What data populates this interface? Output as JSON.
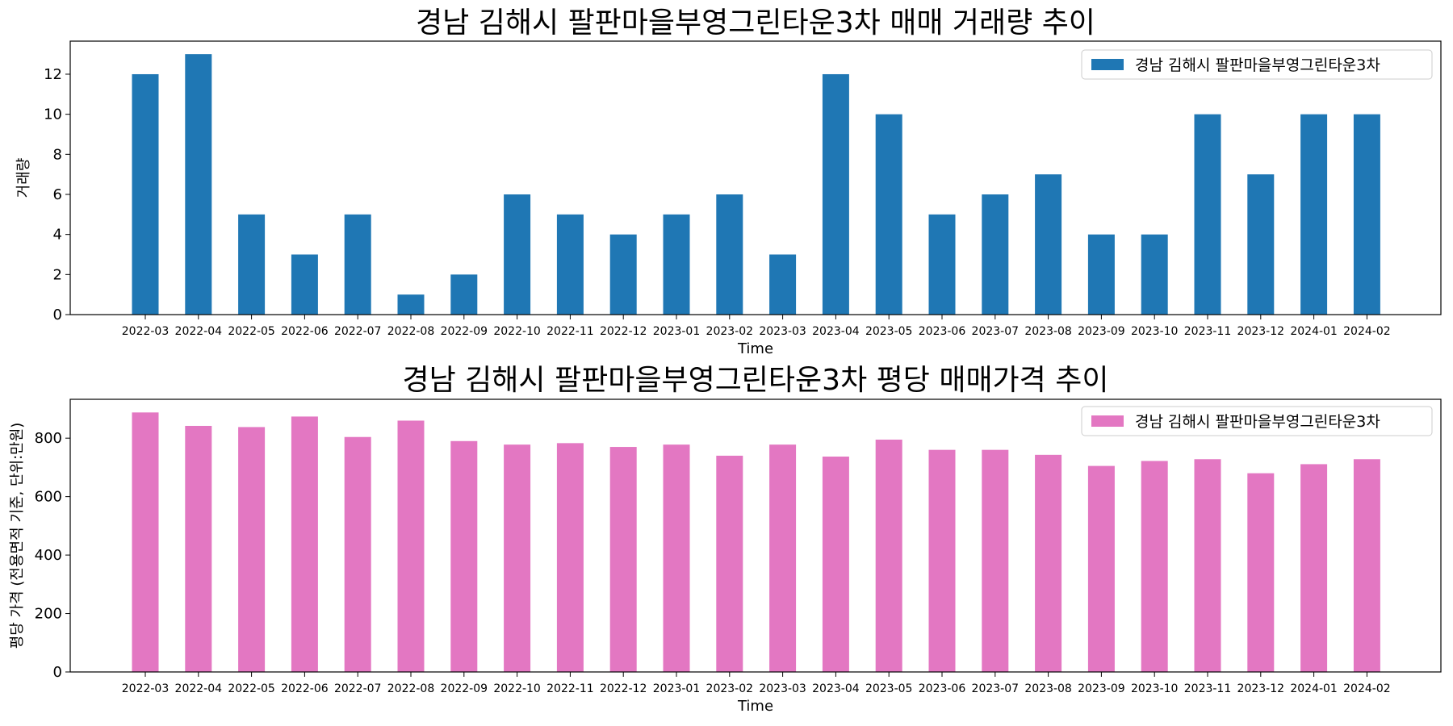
{
  "chart_data": [
    {
      "type": "bar",
      "title": "경남 김해시 팔판마을부영그린타운3차 매매 거래량 추이",
      "xlabel": "Time",
      "ylabel": "거래량",
      "ylim": [
        0,
        13.65
      ],
      "yticks": [
        "0",
        "2",
        "4",
        "6",
        "8",
        "10",
        "12"
      ],
      "legend_position": "top-right",
      "categories": [
        "2022-03",
        "2022-04",
        "2022-05",
        "2022-06",
        "2022-07",
        "2022-08",
        "2022-09",
        "2022-10",
        "2022-11",
        "2022-12",
        "2023-01",
        "2023-02",
        "2023-03",
        "2023-04",
        "2023-05",
        "2023-06",
        "2023-07",
        "2023-08",
        "2023-09",
        "2023-10",
        "2023-11",
        "2023-12",
        "2024-01",
        "2024-02"
      ],
      "series": [
        {
          "name": "경남 김해시 팔판마을부영그린타운3차",
          "color": "#1f77b4",
          "values": [
            12,
            13,
            5,
            3,
            5,
            1,
            2,
            6,
            5,
            4,
            5,
            6,
            3,
            12,
            10,
            5,
            6,
            7,
            4,
            4,
            10,
            7,
            10,
            10
          ]
        }
      ]
    },
    {
      "type": "bar",
      "title": "경남 김해시 팔판마을부영그린타운3차 평당 매매가격 추이",
      "xlabel": "Time",
      "ylabel": "평당 가격 (전용면적 기준, 단위:만원)",
      "ylim": [
        0,
        933
      ],
      "yticks": [
        "0",
        "200",
        "400",
        "600",
        "800"
      ],
      "legend_position": "top-right",
      "categories": [
        "2022-03",
        "2022-04",
        "2022-05",
        "2022-06",
        "2022-07",
        "2022-08",
        "2022-09",
        "2022-10",
        "2022-11",
        "2022-12",
        "2023-01",
        "2023-02",
        "2023-03",
        "2023-04",
        "2023-05",
        "2023-06",
        "2023-07",
        "2023-08",
        "2023-09",
        "2023-10",
        "2023-11",
        "2023-12",
        "2024-01",
        "2024-02"
      ],
      "series": [
        {
          "name": "경남 김해시 팔판마을부영그린타운3차",
          "color": "#e377c2",
          "values": [
            888,
            842,
            838,
            874,
            804,
            860,
            790,
            778,
            783,
            770,
            778,
            740,
            778,
            737,
            795,
            760,
            760,
            743,
            705,
            722,
            728,
            680,
            711,
            728
          ]
        }
      ]
    }
  ]
}
